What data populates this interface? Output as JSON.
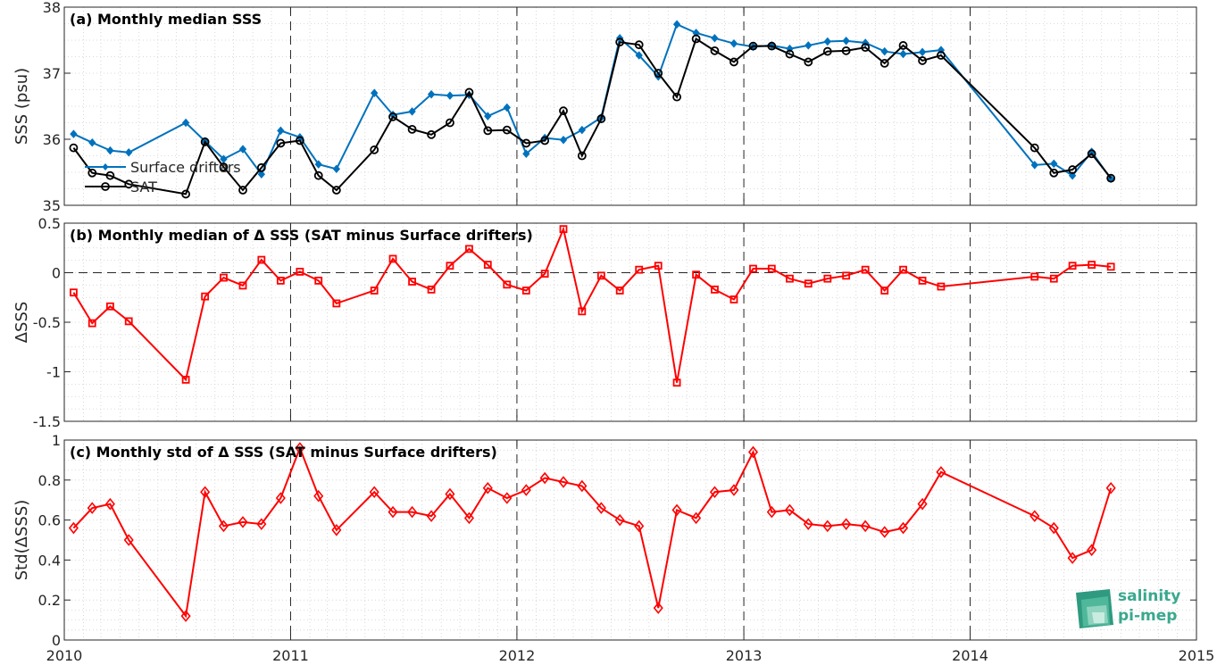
{
  "chart_data": [
    {
      "type": "line",
      "title": "(a) Monthly median SSS",
      "ylabel": "SSS (psu)",
      "xlabel": "",
      "xlim": [
        "2010-01-01",
        "2015-01-01"
      ],
      "ylim": [
        35,
        38
      ],
      "yticks": [
        35,
        36,
        37,
        38
      ],
      "ytick_labels": [
        "35",
        "36",
        "37",
        "38"
      ],
      "grid": true,
      "legend": "left",
      "series": [
        {
          "name": "Surface drifters",
          "color": "#0072bd",
          "marker": "diamond",
          "x": [
            "2010-01-16",
            "2010-02-15",
            "2010-03-16",
            "2010-04-15",
            "2010-07-16",
            "2010-08-16",
            "2010-09-15",
            "2010-10-16",
            "2010-11-15",
            "2010-12-16",
            "2011-01-16",
            "2011-02-15",
            "2011-03-16",
            "2011-05-16",
            "2011-06-15",
            "2011-07-16",
            "2011-08-16",
            "2011-09-15",
            "2011-10-16",
            "2011-11-15",
            "2011-12-16",
            "2012-01-16",
            "2012-02-15",
            "2012-03-16",
            "2012-04-15",
            "2012-05-16",
            "2012-06-15",
            "2012-07-16",
            "2012-08-16",
            "2012-09-15",
            "2012-10-16",
            "2012-11-15",
            "2012-12-16",
            "2013-01-16",
            "2013-02-15",
            "2013-03-16",
            "2013-04-15",
            "2013-05-16",
            "2013-06-15",
            "2013-07-16",
            "2013-08-16",
            "2013-09-15",
            "2013-10-16",
            "2013-11-15",
            "2014-04-15",
            "2014-05-16",
            "2014-06-15",
            "2014-07-16",
            "2014-08-16"
          ],
          "y": [
            36.08,
            35.95,
            35.83,
            35.8,
            36.25,
            35.97,
            35.7,
            35.85,
            35.47,
            36.13,
            36.03,
            35.62,
            35.55,
            36.7,
            36.37,
            36.42,
            36.68,
            36.66,
            36.67,
            36.35,
            36.48,
            35.78,
            36.02,
            35.99,
            36.14,
            36.33,
            37.53,
            37.27,
            36.95,
            37.74,
            37.61,
            37.53,
            37.45,
            37.4,
            37.42,
            37.37,
            37.42,
            37.48,
            37.49,
            37.46,
            37.33,
            37.29,
            37.32,
            37.35,
            35.61,
            35.63,
            35.45,
            35.81,
            35.4
          ]
        },
        {
          "name": "SAT",
          "color": "#000000",
          "marker": "circle",
          "x": [
            "2010-01-16",
            "2010-02-15",
            "2010-03-16",
            "2010-04-15",
            "2010-07-16",
            "2010-08-16",
            "2010-09-15",
            "2010-10-16",
            "2010-11-15",
            "2010-12-16",
            "2011-01-16",
            "2011-02-15",
            "2011-03-16",
            "2011-05-16",
            "2011-06-15",
            "2011-07-16",
            "2011-08-16",
            "2011-09-15",
            "2011-10-16",
            "2011-11-15",
            "2011-12-16",
            "2012-01-16",
            "2012-02-15",
            "2012-03-16",
            "2012-04-15",
            "2012-05-16",
            "2012-06-15",
            "2012-07-16",
            "2012-08-16",
            "2012-09-15",
            "2012-10-16",
            "2012-11-15",
            "2012-12-16",
            "2013-01-16",
            "2013-02-15",
            "2013-03-16",
            "2013-04-15",
            "2013-05-16",
            "2013-06-15",
            "2013-07-16",
            "2013-08-16",
            "2013-09-15",
            "2013-10-16",
            "2013-11-15",
            "2014-04-15",
            "2014-05-16",
            "2014-06-15",
            "2014-07-16",
            "2014-08-16"
          ],
          "y": [
            35.87,
            35.49,
            35.45,
            35.32,
            35.17,
            35.96,
            35.58,
            35.23,
            35.57,
            35.94,
            35.98,
            35.45,
            35.23,
            35.84,
            36.34,
            36.15,
            36.07,
            36.25,
            36.71,
            36.13,
            36.14,
            35.94,
            35.98,
            36.43,
            35.75,
            36.31,
            37.47,
            37.43,
            37.0,
            36.64,
            37.52,
            37.34,
            37.17,
            37.41,
            37.41,
            37.29,
            37.17,
            37.33,
            37.34,
            37.39,
            37.15,
            37.42,
            37.19,
            37.27,
            35.87,
            35.49,
            35.54,
            35.78,
            35.41
          ]
        }
      ]
    },
    {
      "type": "line",
      "title": "(b) Monthly median of Δ SSS (SAT minus Surface drifters)",
      "ylabel": "ΔSSS",
      "xlabel": "",
      "xlim": [
        "2010-01-01",
        "2015-01-01"
      ],
      "ylim": [
        -1.5,
        0.5
      ],
      "yticks": [
        -1.5,
        -1,
        -0.5,
        0,
        0.5
      ],
      "ytick_labels": [
        "-1.5",
        "-1",
        "-0.5",
        "0",
        "0.5"
      ],
      "grid": true,
      "zero_line": true,
      "series": [
        {
          "color": "#ff0000",
          "marker": "square",
          "x": [
            "2010-01-16",
            "2010-02-15",
            "2010-03-16",
            "2010-04-15",
            "2010-07-16",
            "2010-08-16",
            "2010-09-15",
            "2010-10-16",
            "2010-11-15",
            "2010-12-16",
            "2011-01-16",
            "2011-02-15",
            "2011-03-16",
            "2011-05-16",
            "2011-06-15",
            "2011-07-16",
            "2011-08-16",
            "2011-09-15",
            "2011-10-16",
            "2011-11-15",
            "2011-12-16",
            "2012-01-16",
            "2012-02-15",
            "2012-03-16",
            "2012-04-15",
            "2012-05-16",
            "2012-06-15",
            "2012-07-16",
            "2012-08-16",
            "2012-09-15",
            "2012-10-16",
            "2012-11-15",
            "2012-12-16",
            "2013-01-16",
            "2013-02-15",
            "2013-03-16",
            "2013-04-15",
            "2013-05-16",
            "2013-06-15",
            "2013-07-16",
            "2013-08-16",
            "2013-09-15",
            "2013-10-16",
            "2013-11-15",
            "2014-04-15",
            "2014-05-16",
            "2014-06-15",
            "2014-07-16",
            "2014-08-16"
          ],
          "y": [
            -0.2,
            -0.51,
            -0.34,
            -0.49,
            -1.08,
            -0.24,
            -0.05,
            -0.13,
            0.13,
            -0.08,
            0.01,
            -0.08,
            -0.31,
            -0.18,
            0.14,
            -0.09,
            -0.17,
            0.07,
            0.24,
            0.08,
            -0.12,
            -0.18,
            -0.01,
            0.44,
            -0.39,
            -0.03,
            -0.18,
            0.03,
            0.07,
            -1.11,
            -0.02,
            -0.17,
            -0.27,
            0.04,
            0.04,
            -0.06,
            -0.11,
            -0.06,
            -0.03,
            0.03,
            -0.18,
            0.03,
            -0.08,
            -0.14,
            -0.04,
            -0.06,
            0.07,
            0.08,
            0.06
          ]
        }
      ]
    },
    {
      "type": "line",
      "title": "(c) Monthly std of Δ SSS (SAT minus Surface drifters)",
      "ylabel": "Std(ΔSSS)",
      "xlabel": "",
      "xlim": [
        "2010-01-01",
        "2015-01-01"
      ],
      "ylim": [
        0,
        1
      ],
      "yticks": [
        0,
        0.2,
        0.4,
        0.6,
        0.8,
        1
      ],
      "ytick_labels": [
        "0",
        "0.2",
        "0.4",
        "0.6",
        "0.8",
        "1"
      ],
      "xticks": [
        "2010-01-01",
        "2011-01-01",
        "2012-01-01",
        "2013-01-01",
        "2014-01-01",
        "2015-01-01"
      ],
      "xtick_labels": [
        "2010",
        "2011",
        "2012",
        "2013",
        "2014",
        "2015"
      ],
      "grid": true,
      "series": [
        {
          "color": "#ff0000",
          "marker": "diamond",
          "x": [
            "2010-01-16",
            "2010-02-15",
            "2010-03-16",
            "2010-04-15",
            "2010-07-16",
            "2010-08-16",
            "2010-09-15",
            "2010-10-16",
            "2010-11-15",
            "2010-12-16",
            "2011-01-16",
            "2011-02-15",
            "2011-03-16",
            "2011-05-16",
            "2011-06-15",
            "2011-07-16",
            "2011-08-16",
            "2011-09-15",
            "2011-10-16",
            "2011-11-15",
            "2011-12-16",
            "2012-01-16",
            "2012-02-15",
            "2012-03-16",
            "2012-04-15",
            "2012-05-16",
            "2012-06-15",
            "2012-07-16",
            "2012-08-16",
            "2012-09-15",
            "2012-10-16",
            "2012-11-15",
            "2012-12-16",
            "2013-01-16",
            "2013-02-15",
            "2013-03-16",
            "2013-04-15",
            "2013-05-16",
            "2013-06-15",
            "2013-07-16",
            "2013-08-16",
            "2013-09-15",
            "2013-10-16",
            "2013-11-15",
            "2014-04-15",
            "2014-05-16",
            "2014-06-15",
            "2014-07-16",
            "2014-08-16"
          ],
          "y": [
            0.56,
            0.66,
            0.68,
            0.5,
            0.12,
            0.74,
            0.57,
            0.59,
            0.58,
            0.71,
            0.96,
            0.72,
            0.55,
            0.74,
            0.64,
            0.64,
            0.62,
            0.73,
            0.61,
            0.76,
            0.71,
            0.75,
            0.81,
            0.79,
            0.77,
            0.66,
            0.6,
            0.57,
            0.16,
            0.65,
            0.61,
            0.74,
            0.75,
            0.94,
            0.64,
            0.65,
            0.58,
            0.57,
            0.58,
            0.57,
            0.54,
            0.56,
            0.68,
            0.84,
            0.62,
            0.56,
            0.41,
            0.45,
            0.76
          ]
        }
      ]
    }
  ],
  "logo": {
    "line1": "salinity",
    "line2": "pi-mep"
  }
}
